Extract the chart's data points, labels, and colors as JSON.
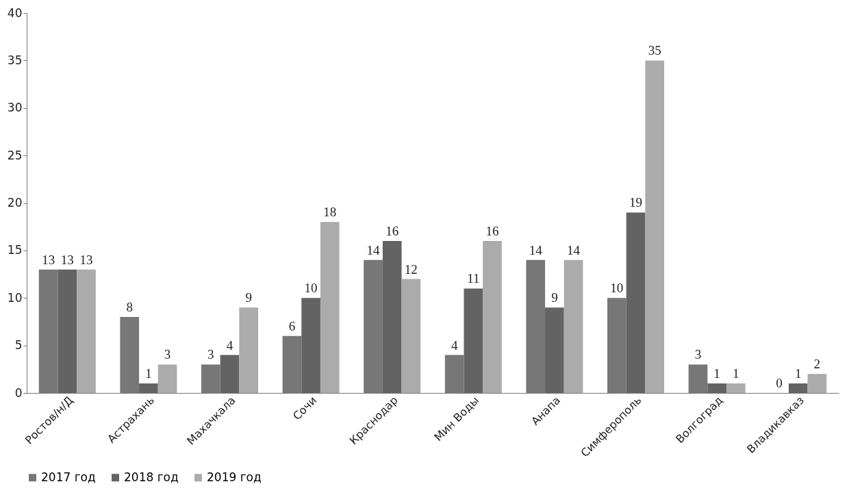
{
  "chart_data": {
    "type": "bar",
    "categories": [
      "Ростов/н/Д",
      "Астрахань",
      "Махачкала",
      "Сочи",
      "Краснодар",
      "Мин Воды",
      "Анапа",
      "Симферополь",
      "Волгоград",
      "Владикавказ"
    ],
    "series": [
      {
        "name": "2017 год",
        "color": "#777777",
        "values": [
          13,
          8,
          3,
          6,
          14,
          4,
          14,
          10,
          3,
          0
        ]
      },
      {
        "name": "2018 год",
        "color": "#636363",
        "values": [
          13,
          1,
          4,
          10,
          16,
          11,
          9,
          19,
          1,
          1
        ]
      },
      {
        "name": "2019 год",
        "color": "#ababab",
        "values": [
          13,
          3,
          9,
          18,
          12,
          16,
          14,
          35,
          1,
          2
        ]
      }
    ],
    "ylim": [
      0,
      40
    ],
    "yticks": [
      0,
      5,
      10,
      15,
      20,
      25,
      30,
      35,
      40
    ],
    "grid": false,
    "legend": "bottom",
    "data_labels": true
  }
}
